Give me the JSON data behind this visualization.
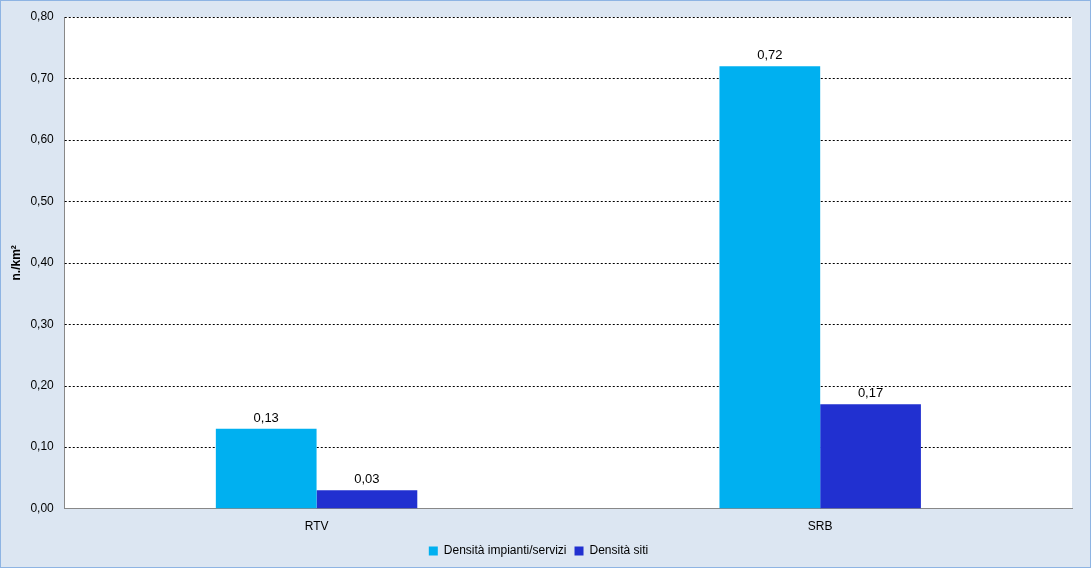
{
  "chart_data": {
    "type": "bar",
    "ylabel": "n./km²",
    "categories": [
      "RTV",
      "SRB"
    ],
    "series": [
      {
        "name": "Densità impianti/servizi",
        "color": "#00b0f0",
        "values": [
          0.13,
          0.72
        ],
        "value_labels": [
          "0,13",
          "0,72"
        ]
      },
      {
        "name": "Densità siti",
        "color": "#2130d0",
        "values": [
          0.03,
          0.17
        ],
        "value_labels": [
          "0,03",
          "0,17"
        ]
      }
    ],
    "ylim": [
      0,
      0.8
    ],
    "yticks": [
      {
        "value": 0,
        "label": "0,00"
      },
      {
        "value": 0.1,
        "label": "0,10"
      },
      {
        "value": 0.2,
        "label": "0,20"
      },
      {
        "value": 0.3,
        "label": "0,30"
      },
      {
        "value": 0.4,
        "label": "0,40"
      },
      {
        "value": 0.5,
        "label": "0,50"
      },
      {
        "value": 0.6,
        "label": "0,60"
      },
      {
        "value": 0.7,
        "label": "0,70"
      },
      {
        "value": 0.8,
        "label": "0,80"
      }
    ],
    "grid": "y",
    "legend": "bottom"
  }
}
